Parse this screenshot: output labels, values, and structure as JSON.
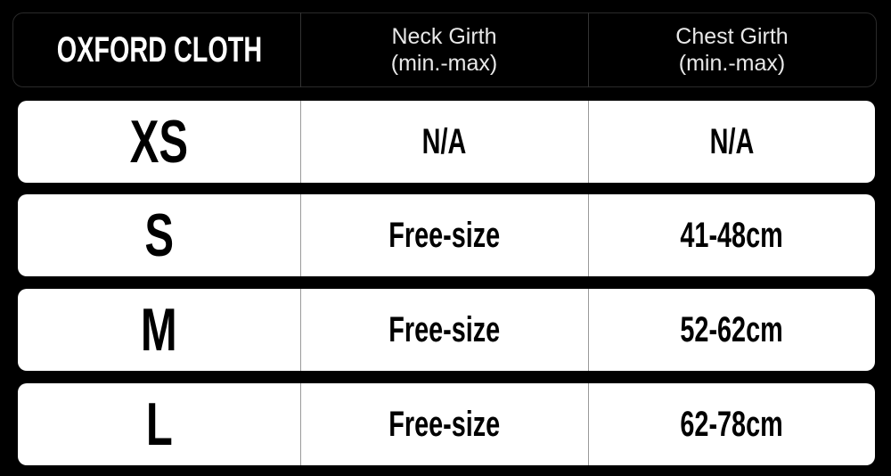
{
  "header": {
    "title": "OXFORD CLOTH",
    "columns": [
      {
        "line1": "Neck Girth",
        "line2": "(min.-max)"
      },
      {
        "line1": "Chest Girth",
        "line2": "(min.-max)"
      }
    ]
  },
  "rows": [
    {
      "size": "XS",
      "neck": "N/A",
      "chest": "N/A"
    },
    {
      "size": "S",
      "neck": "Free-size",
      "chest": "41-48cm"
    },
    {
      "size": "M",
      "neck": "Free-size",
      "chest": "52-62cm"
    },
    {
      "size": "L",
      "neck": "Free-size",
      "chest": "62-78cm"
    }
  ]
}
